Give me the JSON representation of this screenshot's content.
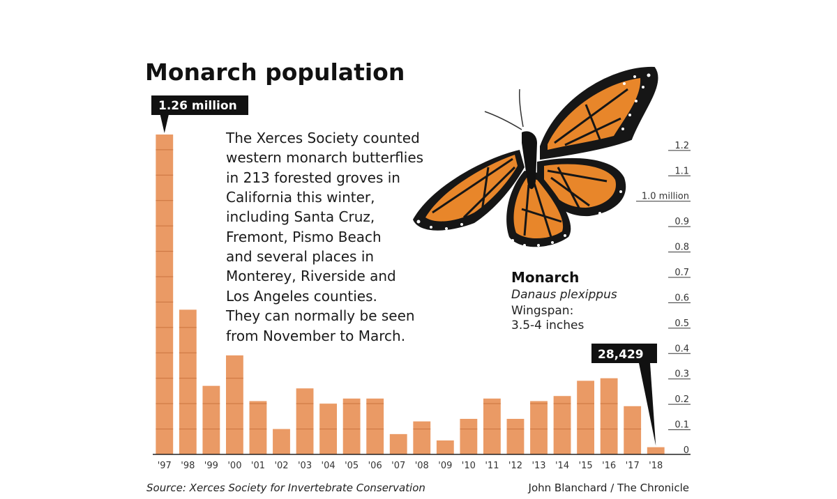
{
  "chart_data": {
    "type": "bar",
    "title": "Monarch population",
    "categories": [
      "'97",
      "'98",
      "'99",
      "'00",
      "'01",
      "'02",
      "'03",
      "'04",
      "'05",
      "'06",
      "'07",
      "'08",
      "'09",
      "'10",
      "'11",
      "'12",
      "'13",
      "'14",
      "'15",
      "'16",
      "'17",
      "'18"
    ],
    "values": [
      1.26,
      0.57,
      0.27,
      0.39,
      0.21,
      0.1,
      0.26,
      0.2,
      0.22,
      0.22,
      0.08,
      0.13,
      0.055,
      0.14,
      0.22,
      0.14,
      0.21,
      0.23,
      0.29,
      0.3,
      0.19,
      0.028429
    ],
    "unit": "million",
    "ylim": [
      0,
      1.3
    ],
    "yticks": [
      {
        "value": 0,
        "label": "0"
      },
      {
        "value": 0.1,
        "label": "0.1"
      },
      {
        "value": 0.2,
        "label": "0.2"
      },
      {
        "value": 0.3,
        "label": "0.3"
      },
      {
        "value": 0.4,
        "label": "0.4"
      },
      {
        "value": 0.5,
        "label": "0.5"
      },
      {
        "value": 0.6,
        "label": "0.6"
      },
      {
        "value": 0.7,
        "label": "0.7"
      },
      {
        "value": 0.8,
        "label": "0.8"
      },
      {
        "value": 0.9,
        "label": "0.9"
      },
      {
        "value": 1.0,
        "label": "1.0 million"
      },
      {
        "value": 1.1,
        "label": "1.1"
      },
      {
        "value": 1.2,
        "label": "1.2"
      }
    ],
    "y_axis_side": "right",
    "grid": false,
    "bar_color": "#ea9a65",
    "bar_band_color": "#c9733f",
    "annotations": [
      {
        "category": "'97",
        "label": "1.26 million"
      },
      {
        "category": "'18",
        "label": "28,429"
      }
    ]
  },
  "description_lines": [
    "The Xerces Society counted",
    "western monarch butterflies",
    "in 213 forested groves in",
    "California this winter,",
    "including Santa Cruz,",
    "Fremont, Pismo Beach",
    "and several places in",
    "Monterey, Riverside and",
    "Los Angeles counties.",
    "They can normally be seen",
    "from November to March."
  ],
  "species": {
    "name": "Monarch",
    "latin": "Danaus plexippus",
    "wingspan_label": "Wingspan:",
    "wingspan_value": "3.5-4 inches"
  },
  "footer": {
    "source": "Source: Xerces Society for Invertebrate Conservation",
    "credit": "John Blanchard / The Chronicle"
  },
  "colors": {
    "wing_orange": "#e8862a",
    "wing_black": "#161616",
    "callout_bg": "#111111"
  },
  "icons": {
    "butterfly": "monarch-butterfly-illustration"
  }
}
